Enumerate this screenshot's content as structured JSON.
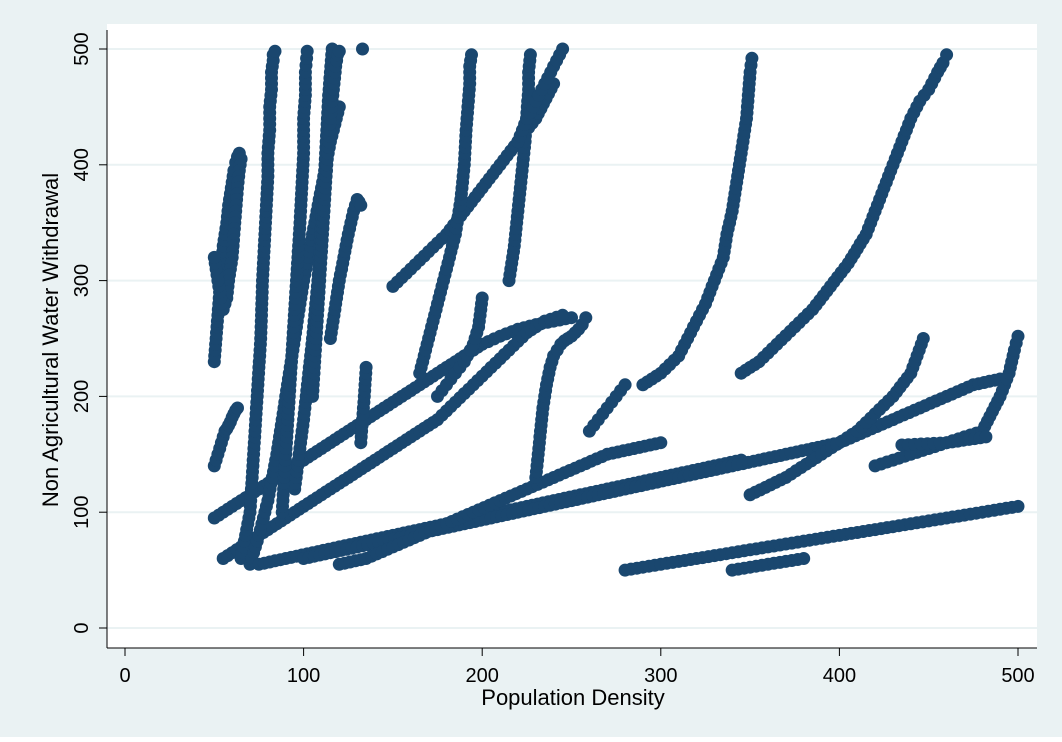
{
  "chart_data": {
    "type": "scatter",
    "title": "",
    "xlabel": "Population Density",
    "ylabel": "Non Agricultural Water Withdrawal",
    "xlim": [
      0,
      500
    ],
    "ylim": [
      0,
      500
    ],
    "x_ticks": [
      "0",
      "100",
      "200",
      "300",
      "400",
      "500"
    ],
    "y_ticks": [
      "0",
      "100",
      "200",
      "300",
      "400",
      "500"
    ],
    "grid": "horizontal",
    "legend": "none",
    "marker_color": "#1a476f",
    "outer_background": "#eaf2f3",
    "plot_background": "#ffffff",
    "grid_color": "#eaf2f3",
    "series": [
      {
        "x": [
          50,
          51,
          52,
          53,
          54,
          55,
          57,
          58,
          59,
          60,
          61,
          62,
          63,
          64,
          65,
          64,
          63,
          62,
          61,
          60,
          58,
          57,
          55,
          54,
          53,
          52,
          51,
          50
        ],
        "y": [
          230,
          250,
          270,
          290,
          310,
          330,
          350,
          365,
          375,
          385,
          395,
          402,
          407,
          410,
          405,
          395,
          380,
          360,
          340,
          320,
          300,
          285,
          275,
          280,
          290,
          300,
          310,
          320
        ]
      },
      {
        "x": [
          50,
          51,
          52,
          53,
          54,
          55,
          56,
          57,
          58,
          59,
          60,
          61,
          62,
          63
        ],
        "y": [
          140,
          145,
          150,
          155,
          160,
          165,
          170,
          172,
          175,
          178,
          182,
          185,
          188,
          190
        ]
      },
      {
        "x": [
          50,
          55,
          60,
          65,
          70,
          75,
          80,
          85,
          90,
          95,
          100,
          110,
          120,
          130,
          140,
          150,
          160,
          170,
          180,
          190,
          200,
          210,
          220,
          230,
          240,
          250
        ],
        "y": [
          95,
          100,
          105,
          110,
          115,
          120,
          125,
          130,
          135,
          140,
          145,
          155,
          165,
          175,
          185,
          195,
          205,
          215,
          225,
          235,
          245,
          252,
          258,
          262,
          265,
          268
        ]
      },
      {
        "x": [
          55,
          65,
          75,
          85,
          95,
          105,
          115,
          125,
          135,
          145,
          155,
          165,
          175,
          185,
          195,
          205,
          215,
          225,
          235,
          245
        ],
        "y": [
          60,
          70,
          80,
          90,
          100,
          110,
          120,
          130,
          140,
          150,
          160,
          170,
          180,
          195,
          210,
          225,
          240,
          255,
          265,
          270
        ]
      },
      {
        "x": [
          65,
          70,
          72,
          74,
          76,
          77,
          78,
          79,
          80,
          80,
          81,
          81,
          82,
          82,
          83,
          83,
          84
        ],
        "y": [
          60,
          100,
          150,
          200,
          250,
          300,
          330,
          360,
          390,
          410,
          430,
          450,
          465,
          480,
          490,
          495,
          498
        ]
      },
      {
        "x": [
          70,
          75,
          80,
          85,
          90,
          95,
          100,
          105,
          110,
          115,
          120
        ],
        "y": [
          55,
          80,
          110,
          150,
          200,
          250,
          300,
          340,
          380,
          420,
          450
        ]
      },
      {
        "x": [
          88,
          90,
          92,
          94,
          96,
          98,
          99,
          100,
          100,
          101,
          101,
          102
        ],
        "y": [
          100,
          150,
          200,
          250,
          300,
          350,
          380,
          410,
          440,
          460,
          480,
          498
        ]
      },
      {
        "x": [
          95,
          100,
          105,
          108,
          110,
          112,
          113,
          114,
          115,
          116
        ],
        "y": [
          120,
          180,
          250,
          300,
          350,
          400,
          430,
          460,
          480,
          500
        ]
      },
      {
        "x": [
          105,
          107,
          109,
          111,
          113,
          115,
          117,
          118,
          119,
          120
        ],
        "y": [
          200,
          250,
          300,
          350,
          400,
          440,
          470,
          485,
          495,
          498
        ]
      },
      {
        "x": [
          115,
          120,
          125,
          128,
          130,
          131,
          132
        ],
        "y": [
          250,
          300,
          340,
          360,
          370,
          368,
          365
        ]
      },
      {
        "x": [
          132,
          133,
          134,
          135
        ],
        "y": [
          160,
          180,
          200,
          225
        ]
      },
      {
        "x": [
          133
        ],
        "y": [
          500
        ]
      },
      {
        "x": [
          75,
          90,
          105,
          120,
          135,
          150,
          165,
          180,
          195,
          210,
          225,
          240,
          255,
          270,
          285,
          300,
          315,
          330,
          345
        ],
        "y": [
          55,
          60,
          65,
          70,
          75,
          80,
          85,
          90,
          95,
          100,
          105,
          110,
          115,
          120,
          125,
          130,
          135,
          140,
          145
        ]
      },
      {
        "x": [
          100,
          115,
          130,
          145,
          160,
          175,
          190,
          205,
          220,
          235,
          250,
          265,
          280,
          295,
          310,
          325,
          340,
          355,
          370,
          385,
          400,
          415,
          430,
          445,
          460,
          475,
          490
        ],
        "y": [
          60,
          65,
          70,
          75,
          80,
          85,
          90,
          95,
          100,
          105,
          110,
          115,
          120,
          125,
          130,
          135,
          140,
          145,
          150,
          155,
          160,
          170,
          180,
          190,
          200,
          210,
          215
        ]
      },
      {
        "x": [
          120,
          135,
          150,
          165,
          180,
          195,
          210,
          225,
          240,
          255,
          270,
          285,
          300
        ],
        "y": [
          55,
          60,
          70,
          80,
          90,
          100,
          110,
          120,
          130,
          140,
          150,
          155,
          160
        ]
      },
      {
        "x": [
          150,
          160,
          170,
          180,
          190,
          200,
          210,
          220,
          230,
          240
        ],
        "y": [
          295,
          310,
          325,
          340,
          360,
          380,
          400,
          420,
          440,
          470
        ]
      },
      {
        "x": [
          165,
          170,
          175,
          180,
          185,
          188,
          190,
          191,
          192,
          193,
          193,
          194
        ],
        "y": [
          220,
          250,
          280,
          310,
          340,
          370,
          400,
          430,
          450,
          470,
          485,
          495
        ]
      },
      {
        "x": [
          175,
          180,
          185,
          190,
          195,
          198,
          200
        ],
        "y": [
          200,
          210,
          220,
          230,
          245,
          260,
          285
        ]
      },
      {
        "x": [
          215,
          218,
          220,
          222,
          224,
          225,
          226,
          226,
          227
        ],
        "y": [
          300,
          330,
          360,
          390,
          420,
          445,
          465,
          480,
          495
        ]
      },
      {
        "x": [
          220,
          225,
          230,
          235,
          240,
          245
        ],
        "y": [
          420,
          440,
          455,
          470,
          485,
          500
        ]
      },
      {
        "x": [
          230,
          232,
          234,
          236,
          238,
          240,
          242,
          244,
          246,
          248,
          250,
          252,
          254,
          256,
          258
        ],
        "y": [
          130,
          160,
          190,
          210,
          225,
          235,
          240,
          245,
          248,
          250,
          252,
          255,
          258,
          262,
          268
        ]
      },
      {
        "x": [
          260,
          265,
          270,
          275,
          280
        ],
        "y": [
          170,
          180,
          190,
          200,
          210
        ]
      },
      {
        "x": [
          290,
          300,
          310,
          315,
          320,
          325,
          330,
          335,
          337,
          340,
          342,
          344,
          346,
          348,
          349,
          350,
          351
        ],
        "y": [
          210,
          220,
          235,
          250,
          265,
          280,
          300,
          320,
          340,
          360,
          380,
          400,
          420,
          440,
          460,
          480,
          492
        ]
      },
      {
        "x": [
          345,
          355,
          365,
          375,
          385,
          395,
          405,
          415,
          420,
          425,
          430,
          435,
          440,
          445,
          450,
          455,
          458,
          460
        ],
        "y": [
          220,
          230,
          245,
          260,
          275,
          295,
          315,
          340,
          360,
          380,
          400,
          420,
          440,
          455,
          465,
          480,
          488,
          495
        ]
      },
      {
        "x": [
          350,
          370,
          390,
          410,
          430,
          440,
          447
        ],
        "y": [
          115,
          130,
          150,
          170,
          200,
          220,
          250
        ]
      },
      {
        "x": [
          280,
          300,
          320,
          340,
          360,
          380,
          400,
          420,
          440,
          460,
          480,
          500
        ],
        "y": [
          50,
          55,
          60,
          65,
          70,
          75,
          80,
          85,
          90,
          95,
          100,
          105
        ]
      },
      {
        "x": [
          340,
          360,
          380
        ],
        "y": [
          50,
          55,
          60
        ]
      },
      {
        "x": [
          420,
          440,
          460,
          480,
          490,
          495,
          498,
          500
        ],
        "y": [
          140,
          150,
          160,
          170,
          200,
          220,
          240,
          252
        ]
      },
      {
        "x": [
          435,
          460,
          482
        ],
        "y": [
          158,
          160,
          165
        ]
      }
    ]
  }
}
